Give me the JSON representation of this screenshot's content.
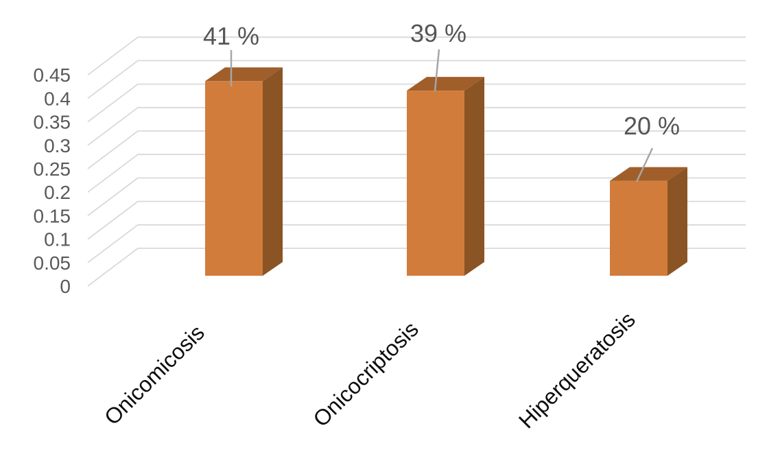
{
  "chart_data": {
    "type": "bar",
    "variant": "3d-column",
    "title": "",
    "xlabel": "",
    "ylabel": "",
    "categories": [
      "Onicomicosis",
      "Onicocriptosis",
      "Hiperqueratosis"
    ],
    "values": [
      0.41,
      0.39,
      0.2
    ],
    "data_labels": [
      "41 %",
      "39 %",
      "20 %"
    ],
    "yticks": [
      "0",
      "0.05",
      "0.1",
      "0.15",
      "0.2",
      "0.25",
      "0.3",
      "0.35",
      "0.4",
      "0.45"
    ],
    "ytick_values": [
      0,
      0.05,
      0.1,
      0.15,
      0.2,
      0.25,
      0.3,
      0.35,
      0.4,
      0.45
    ],
    "ylim": [
      0,
      0.45
    ],
    "grid": true,
    "legend_visible": false,
    "colors": {
      "bar_front": "#D27C3B",
      "bar_top": "#A05E2B",
      "bar_side": "#8A5425",
      "gridline": "#D9D9D9",
      "leader_line": "#A6A6A6",
      "data_label": "#555555",
      "axis_label": "#595959",
      "category_label": "#0D0D0D",
      "background": "#FFFFFF"
    }
  }
}
